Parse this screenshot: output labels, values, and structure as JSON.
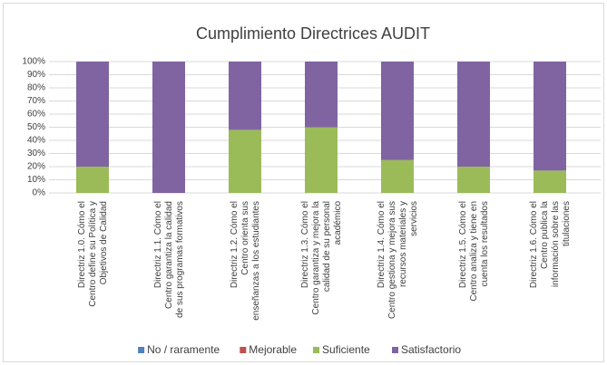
{
  "chart_data": {
    "type": "stacked_bar",
    "title": "Cumplimiento Directrices AUDIT",
    "categories": [
      "Directriz 1.0. Cómo el Centro define su Política y Objetivos de Calidad",
      "Directriz 1.1. Cómo el Centro garantiza la calidad de sus programas formativos",
      "Directriz 1.2. Cómo el Centro orienta sus enseñanzas a los estudiantes",
      "Directriz 1.3. Cómo el Centro garantiza y mejora la calidad de su personal académico",
      "Directriz 1.4. Cómo el Centro gestiona y mejora sus recursos materiales y servicios",
      "Directriz 1.5. Cómo el Centro analiza y tiene en cuenta los resultados",
      "Directriz 1.6. Cómo el Centro publica la información sobre las titulaciones"
    ],
    "series": [
      {
        "name": "No / raramente",
        "color": "#4f81bd",
        "values": [
          0,
          0,
          0,
          0,
          0,
          0,
          0
        ]
      },
      {
        "name": "Mejorable",
        "color": "#c0504d",
        "values": [
          0,
          0,
          0,
          0,
          0,
          0,
          0
        ]
      },
      {
        "name": "Suficiente",
        "color": "#9bbb59",
        "values": [
          20,
          0,
          48,
          50,
          25,
          20,
          17
        ]
      },
      {
        "name": "Satisfactorio",
        "color": "#8064a2",
        "values": [
          80,
          100,
          52,
          50,
          75,
          80,
          83
        ]
      }
    ],
    "ylim": [
      0,
      100
    ],
    "yticks": [
      {
        "value": 0,
        "label": "0%"
      },
      {
        "value": 10,
        "label": "10%"
      },
      {
        "value": 20,
        "label": "20%"
      },
      {
        "value": 30,
        "label": "30%"
      },
      {
        "value": 40,
        "label": "40%"
      },
      {
        "value": 50,
        "label": "50%"
      },
      {
        "value": 60,
        "label": "60%"
      },
      {
        "value": 70,
        "label": "70%"
      },
      {
        "value": 80,
        "label": "80%"
      },
      {
        "value": 90,
        "label": "90%"
      },
      {
        "value": 100,
        "label": "100%"
      }
    ],
    "grid": true,
    "legend": "bottom"
  }
}
